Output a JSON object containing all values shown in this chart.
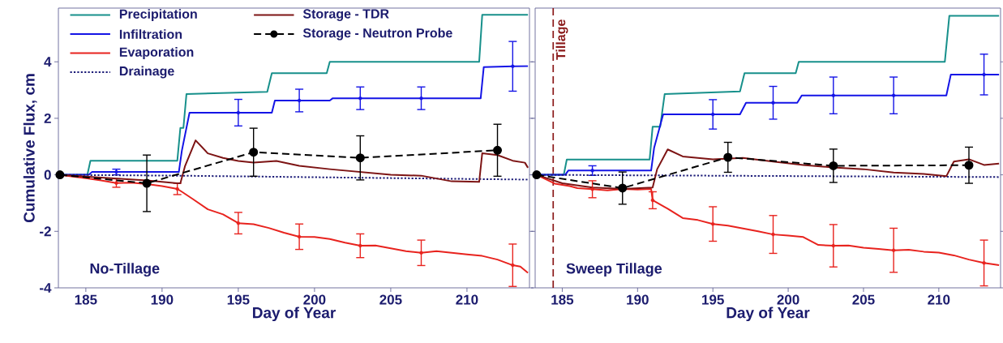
{
  "chart_data": [
    {
      "type": "line",
      "xlabel": "Day of Year",
      "ylabel": "Cumulative Flux, cm",
      "xlim": [
        183.2,
        214.1
      ],
      "ylim": [
        -4,
        5.9
      ],
      "xticks": [
        185,
        190,
        195,
        200,
        205,
        210
      ],
      "yticks": [
        -4,
        -2,
        0,
        2,
        4
      ],
      "legend": "top left",
      "marker": "none",
      "grid": false,
      "annotations": [
        "No-Tillage"
      ],
      "series": [
        {
          "name": "Precipitation",
          "color": "#17908b",
          "line_style": "solid",
          "x": [
            183.2,
            185.1,
            185.3,
            191.0,
            191.2,
            191.4,
            191.6,
            196.9,
            197.2,
            200.8,
            201.0,
            210.8,
            211.0,
            214
          ],
          "values": [
            0,
            0,
            0.5,
            0.5,
            1.66,
            1.66,
            2.86,
            2.94,
            3.6,
            3.6,
            4.0,
            4.0,
            5.66,
            5.66
          ]
        },
        {
          "name": "Infiltration",
          "color": "#1414e6",
          "line_style": "solid",
          "x": [
            183.2,
            185.2,
            185.4,
            187,
            191.1,
            191.3,
            191.8,
            195,
            197.2,
            197.4,
            199,
            201,
            201.2,
            203,
            207,
            210.9,
            211.1,
            213,
            214
          ],
          "values": [
            0,
            0,
            0.1,
            0.1,
            0.1,
            0.86,
            2.2,
            2.2,
            2.2,
            2.63,
            2.63,
            2.63,
            2.71,
            2.71,
            2.71,
            2.71,
            3.81,
            3.84,
            3.85
          ],
          "errors": [
            null,
            null,
            null,
            0.1,
            null,
            null,
            null,
            0.47,
            null,
            null,
            0.4,
            null,
            null,
            0.4,
            0.4,
            null,
            null,
            0.88,
            null
          ]
        },
        {
          "name": "Evaporation",
          "color": "#e8231e",
          "line_style": "solid",
          "x": [
            183.2,
            185,
            186,
            187,
            188,
            189,
            190,
            191,
            191.3,
            192,
            193,
            194,
            195,
            196,
            197,
            198,
            199,
            200,
            201,
            202,
            203,
            204,
            205,
            206,
            207,
            208,
            209,
            210,
            211,
            212,
            213,
            213.5,
            214
          ],
          "values": [
            0,
            -0.12,
            -0.2,
            -0.29,
            -0.28,
            -0.33,
            -0.4,
            -0.5,
            -0.6,
            -0.85,
            -1.22,
            -1.4,
            -1.71,
            -1.75,
            -1.88,
            -2.05,
            -2.19,
            -2.2,
            -2.27,
            -2.4,
            -2.51,
            -2.5,
            -2.6,
            -2.7,
            -2.76,
            -2.7,
            -2.76,
            -2.82,
            -2.87,
            -3.0,
            -3.2,
            -3.25,
            -3.47
          ],
          "errors": [
            null,
            null,
            null,
            0.15,
            null,
            null,
            null,
            0.2,
            null,
            null,
            null,
            null,
            0.38,
            null,
            null,
            null,
            0.45,
            null,
            null,
            null,
            0.42,
            null,
            null,
            null,
            0.45,
            null,
            null,
            null,
            null,
            null,
            0.75,
            null,
            null
          ]
        },
        {
          "name": "Drainage",
          "color": "#1c1c78",
          "line_style": "dotted",
          "x": [
            183.2,
            191,
            214
          ],
          "values": [
            0,
            -0.03,
            -0.17
          ]
        },
        {
          "name": "Storage - TDR",
          "color": "#7d1414",
          "line_style": "solid",
          "x": [
            183.2,
            186,
            189,
            191,
            191.2,
            191.5,
            192.2,
            193,
            194,
            195,
            196,
            197.5,
            199,
            201,
            203,
            205,
            207,
            209,
            210.8,
            211,
            212,
            213,
            213.8,
            214
          ],
          "values": [
            0,
            -0.1,
            -0.2,
            -0.3,
            -0.3,
            0.3,
            1.22,
            0.76,
            0.6,
            0.49,
            0.43,
            0.49,
            0.32,
            0.2,
            0.1,
            0.0,
            -0.03,
            -0.23,
            -0.25,
            0.76,
            0.7,
            0.5,
            0.43,
            0.25
          ]
        },
        {
          "name": "Storage - Neutron Probe",
          "color": "#000000",
          "line_style": "dashed",
          "marker": "circle",
          "x": [
            183.3,
            189,
            196,
            203,
            212
          ],
          "values": [
            0,
            -0.3,
            0.8,
            0.6,
            0.87
          ],
          "errors": [
            null,
            1.0,
            0.85,
            0.78,
            0.92
          ]
        }
      ]
    },
    {
      "type": "line",
      "xlabel": "Day of Year",
      "xlim": [
        183.2,
        214.1
      ],
      "ylim": [
        -4,
        5.9
      ],
      "xticks": [
        185,
        190,
        195,
        200,
        205,
        210
      ],
      "yticks": [
        -4,
        -2,
        0,
        2,
        4
      ],
      "tick_labels": "x",
      "marker": "none",
      "grid": false,
      "annotations": [
        "Sweep Tillage"
      ],
      "ref_lines": [
        {
          "axis": "x",
          "value": 184.4,
          "label": "Tillage",
          "color": "#8b1a1a",
          "line_style": "dashed"
        }
      ],
      "series": [
        {
          "color": "#17908b",
          "line_style": "solid",
          "x": [
            183.3,
            185.1,
            185.3,
            190.8,
            191.0,
            191.5,
            191.8,
            196.8,
            197.1,
            200.5,
            200.7,
            210.4,
            210.7,
            214
          ],
          "values": [
            0,
            0,
            0.54,
            0.54,
            1.7,
            1.7,
            2.86,
            2.95,
            3.6,
            3.6,
            4.0,
            4.0,
            5.63,
            5.63
          ]
        },
        {
          "color": "#1414e6",
          "line_style": "solid",
          "x": [
            183.3,
            185.2,
            185.4,
            187,
            190.9,
            191.1,
            191.7,
            195,
            196.8,
            197.2,
            199,
            200.6,
            200.9,
            203,
            207,
            210.5,
            210.8,
            213,
            214
          ],
          "values": [
            0,
            0,
            0.15,
            0.15,
            0.15,
            0.96,
            2.14,
            2.14,
            2.14,
            2.55,
            2.55,
            2.55,
            2.81,
            2.81,
            2.81,
            2.81,
            3.55,
            3.55,
            3.55
          ],
          "errors": [
            null,
            null,
            null,
            0.17,
            null,
            null,
            null,
            0.52,
            null,
            null,
            0.58,
            null,
            null,
            0.65,
            0.65,
            null,
            null,
            0.72,
            null
          ]
        },
        {
          "color": "#e8231e",
          "line_style": "solid",
          "x": [
            183.3,
            184.5,
            185.5,
            186,
            187,
            188,
            189,
            190,
            190.9,
            191,
            192,
            193,
            194,
            195,
            196,
            197,
            198,
            199,
            200,
            201,
            202,
            203,
            204,
            205,
            206,
            207,
            208,
            209,
            210,
            211,
            212,
            213,
            214
          ],
          "values": [
            0,
            -0.31,
            -0.4,
            -0.47,
            -0.51,
            -0.55,
            -0.5,
            -0.52,
            -0.5,
            -0.9,
            -1.2,
            -1.53,
            -1.6,
            -1.74,
            -1.8,
            -1.9,
            -2.0,
            -2.11,
            -2.15,
            -2.2,
            -2.48,
            -2.51,
            -2.5,
            -2.58,
            -2.62,
            -2.67,
            -2.65,
            -2.72,
            -2.75,
            -2.85,
            -3.0,
            -3.12,
            -3.2
          ],
          "errors": [
            null,
            null,
            null,
            null,
            0.3,
            null,
            null,
            null,
            null,
            0.3,
            null,
            null,
            null,
            0.61,
            null,
            null,
            null,
            0.67,
            null,
            null,
            null,
            0.75,
            null,
            null,
            null,
            0.78,
            null,
            null,
            null,
            null,
            null,
            0.81,
            null
          ]
        },
        {
          "color": "#1c1c78",
          "line_style": "dotted",
          "x": [
            183.3,
            191,
            214
          ],
          "values": [
            0,
            -0.02,
            -0.08
          ]
        },
        {
          "color": "#7d1414",
          "line_style": "solid",
          "x": [
            183.3,
            185,
            187,
            189,
            191,
            191.3,
            192,
            193,
            195,
            197,
            199,
            201,
            203,
            205,
            207,
            209,
            210.5,
            211,
            212,
            213,
            214
          ],
          "values": [
            0,
            -0.3,
            -0.45,
            -0.5,
            -0.45,
            0.2,
            0.9,
            0.65,
            0.55,
            0.6,
            0.47,
            0.35,
            0.26,
            0.2,
            0.08,
            0.03,
            -0.05,
            0.47,
            0.55,
            0.35,
            0.4
          ]
        },
        {
          "color": "#000000",
          "line_style": "dashed",
          "marker": "circle",
          "x": [
            183.3,
            189,
            196,
            203,
            212
          ],
          "values": [
            0,
            -0.47,
            0.62,
            0.32,
            0.34
          ],
          "errors": [
            null,
            0.57,
            0.53,
            0.59,
            0.64
          ]
        }
      ]
    }
  ]
}
